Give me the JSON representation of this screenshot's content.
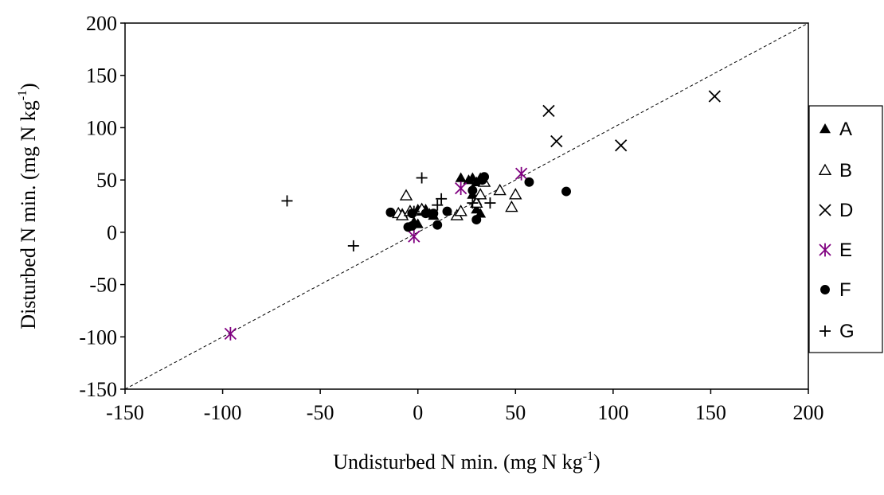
{
  "chart_data": {
    "type": "scatter",
    "xlabel_main": "Undisturbed N min. (mg N kg",
    "xlabel_sup": "-1",
    "xlabel_end": ")",
    "ylabel_main": "Disturbed N min. (mg N kg",
    "ylabel_sup": "-1",
    "ylabel_end": ")",
    "xlim": [
      -150,
      200
    ],
    "ylim": [
      -150,
      200
    ],
    "xticks": [
      "-150",
      "-100",
      "-50",
      "0",
      "50",
      "100",
      "150",
      "200"
    ],
    "yticks": [
      "200",
      "150",
      "100",
      "50",
      "0",
      "-50",
      "-100",
      "-150"
    ],
    "grid": false,
    "legend_position": "right",
    "reference_line": "1:1 dashed",
    "series": [
      {
        "name": "A",
        "marker": "filled-triangle",
        "color": "#000000",
        "points": [
          [
            22,
            52
          ],
          [
            26,
            50
          ],
          [
            28,
            52
          ],
          [
            32,
            52
          ],
          [
            30,
            48
          ],
          [
            0,
            22
          ],
          [
            2,
            20
          ],
          [
            4,
            22
          ],
          [
            6,
            18
          ],
          [
            8,
            16
          ],
          [
            30,
            22
          ],
          [
            32,
            18
          ],
          [
            0,
            8
          ],
          [
            -2,
            10
          ],
          [
            28,
            36
          ],
          [
            30,
            30
          ],
          [
            -8,
            18
          ],
          [
            -4,
            20
          ]
        ]
      },
      {
        "name": "B",
        "marker": "open-triangle",
        "color": "#000000",
        "points": [
          [
            -6,
            35
          ],
          [
            -10,
            18
          ],
          [
            -8,
            16
          ],
          [
            -4,
            20
          ],
          [
            20,
            16
          ],
          [
            22,
            20
          ],
          [
            30,
            28
          ],
          [
            32,
            36
          ],
          [
            42,
            40
          ],
          [
            50,
            36
          ],
          [
            48,
            24
          ],
          [
            34,
            48
          ],
          [
            2,
            22
          ]
        ]
      },
      {
        "name": "D",
        "marker": "x",
        "color": "#000000",
        "points": [
          [
            67,
            116
          ],
          [
            71,
            87
          ],
          [
            104,
            83
          ],
          [
            152,
            130
          ]
        ]
      },
      {
        "name": "E",
        "marker": "asterisk",
        "color": "#800080",
        "points": [
          [
            -96,
            -97
          ],
          [
            -2,
            -4
          ],
          [
            22,
            42
          ],
          [
            53,
            56
          ]
        ]
      },
      {
        "name": "F",
        "marker": "filled-circle",
        "color": "#000000",
        "points": [
          [
            -14,
            19
          ],
          [
            -5,
            5
          ],
          [
            -3,
            6
          ],
          [
            4,
            18
          ],
          [
            8,
            18
          ],
          [
            10,
            7
          ],
          [
            15,
            20
          ],
          [
            30,
            12
          ],
          [
            33,
            50
          ],
          [
            34,
            53
          ],
          [
            57,
            48
          ],
          [
            76,
            39
          ],
          [
            -3,
            18
          ],
          [
            28,
            40
          ]
        ]
      },
      {
        "name": "G",
        "marker": "plus",
        "color": "#000000",
        "points": [
          [
            -67,
            30
          ],
          [
            -33,
            -13
          ],
          [
            2,
            52
          ],
          [
            12,
            32
          ],
          [
            10,
            26
          ],
          [
            28,
            28
          ],
          [
            37,
            28
          ],
          [
            -2,
            20
          ]
        ]
      }
    ]
  }
}
